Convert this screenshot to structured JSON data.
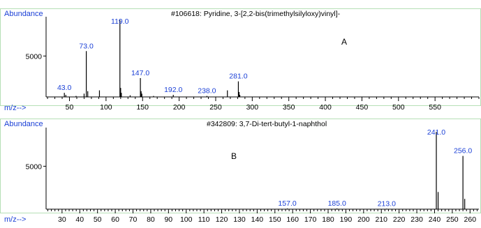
{
  "colors": {
    "accent_text": "#1a3fd6",
    "frame_border": "#b5dfb5",
    "bars": "#000000"
  },
  "chart_data": [
    {
      "type": "bar",
      "title": "#106618: Pyridine, 3-[2,2-bis(trimethylsilyloxy)vinyl]-",
      "panel_letter": "A",
      "ylabel": "Abundance",
      "xlabel": "m/z-->",
      "y_tick_labels": [
        "5000"
      ],
      "y_tick_values": [
        5000
      ],
      "ylim": [
        0,
        9800
      ],
      "xlim": [
        18,
        610
      ],
      "x_tick_labels": [
        "50",
        "100",
        "150",
        "200",
        "250",
        "300",
        "350",
        "400",
        "450",
        "500",
        "550"
      ],
      "x_major_ticks": [
        50,
        100,
        150,
        200,
        250,
        300,
        350,
        400,
        450,
        500,
        550
      ],
      "x_minor_step": 10,
      "peaks": [
        {
          "mz": 43,
          "abundance": 500
        },
        {
          "mz": 45,
          "abundance": 250
        },
        {
          "mz": 59,
          "abundance": 120
        },
        {
          "mz": 70,
          "abundance": 400
        },
        {
          "mz": 73,
          "abundance": 5600
        },
        {
          "mz": 75,
          "abundance": 700
        },
        {
          "mz": 91,
          "abundance": 800
        },
        {
          "mz": 119,
          "abundance": 9400
        },
        {
          "mz": 120,
          "abundance": 1100
        },
        {
          "mz": 121,
          "abundance": 500
        },
        {
          "mz": 133,
          "abundance": 200
        },
        {
          "mz": 147,
          "abundance": 2300
        },
        {
          "mz": 148,
          "abundance": 700
        },
        {
          "mz": 149,
          "abundance": 400
        },
        {
          "mz": 165,
          "abundance": 120
        },
        {
          "mz": 192,
          "abundance": 250
        },
        {
          "mz": 238,
          "abundance": 120
        },
        {
          "mz": 266,
          "abundance": 800
        },
        {
          "mz": 281,
          "abundance": 1900
        },
        {
          "mz": 282,
          "abundance": 600
        },
        {
          "mz": 283,
          "abundance": 250
        }
      ],
      "peak_labels": [
        {
          "mz": 43,
          "text": "43.0"
        },
        {
          "mz": 73,
          "text": "73.0"
        },
        {
          "mz": 119,
          "text": "119.0"
        },
        {
          "mz": 147,
          "text": "147.0"
        },
        {
          "mz": 192,
          "text": "192.0"
        },
        {
          "mz": 238,
          "text": "238.0"
        },
        {
          "mz": 281,
          "text": "281.0"
        }
      ]
    },
    {
      "type": "bar",
      "title": "#342809: 3,7-Di-tert-butyl-1-naphthol",
      "panel_letter": "B",
      "ylabel": "Abundance",
      "xlabel": "m/z-->",
      "y_tick_labels": [
        "5000"
      ],
      "y_tick_values": [
        5000
      ],
      "ylim": [
        0,
        9500
      ],
      "xlim": [
        21,
        265
      ],
      "x_tick_labels": [
        "30",
        "40",
        "50",
        "60",
        "70",
        "80",
        "90",
        "100",
        "110",
        "120",
        "130",
        "140",
        "150",
        "160",
        "170",
        "180",
        "190",
        "200",
        "210",
        "220",
        "230",
        "240",
        "250",
        "260"
      ],
      "x_major_ticks": [
        30,
        40,
        50,
        60,
        70,
        80,
        90,
        100,
        110,
        120,
        130,
        140,
        150,
        160,
        170,
        180,
        190,
        200,
        210,
        220,
        230,
        240,
        250,
        260
      ],
      "x_minor_step": 2,
      "peaks": [
        {
          "mz": 157,
          "abundance": 80
        },
        {
          "mz": 185,
          "abundance": 80
        },
        {
          "mz": 213,
          "abundance": 60
        },
        {
          "mz": 241,
          "abundance": 9000
        },
        {
          "mz": 242,
          "abundance": 2000
        },
        {
          "mz": 256,
          "abundance": 6200
        },
        {
          "mz": 257,
          "abundance": 1200
        }
      ],
      "peak_labels": [
        {
          "mz": 157,
          "text": "157.0"
        },
        {
          "mz": 185,
          "text": "185.0"
        },
        {
          "mz": 213,
          "text": "213.0"
        },
        {
          "mz": 241,
          "text": "241.0"
        },
        {
          "mz": 256,
          "text": "256.0"
        }
      ]
    }
  ]
}
